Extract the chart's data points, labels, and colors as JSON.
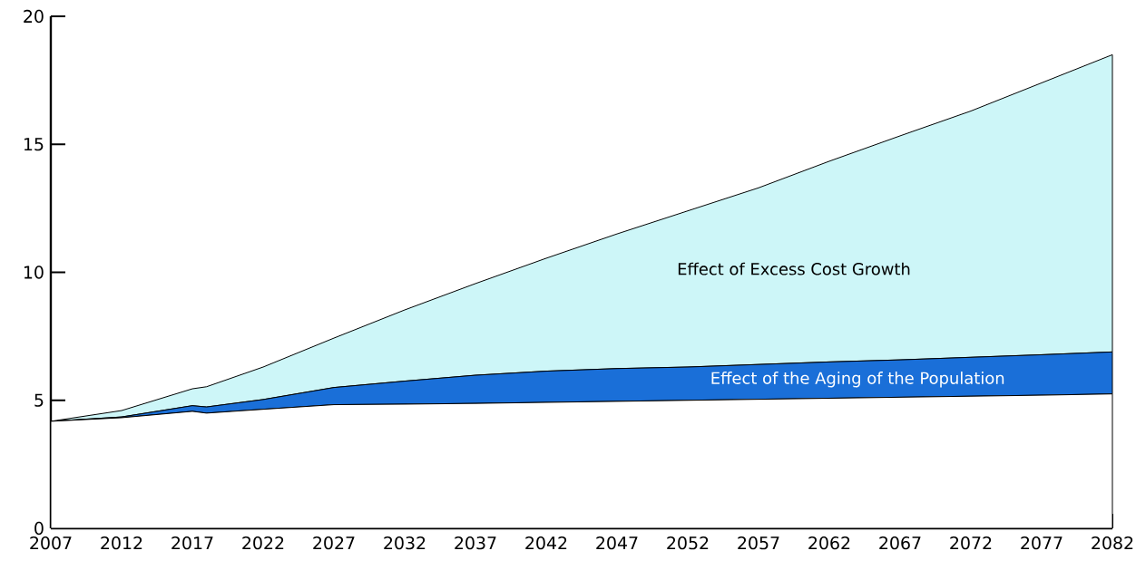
{
  "chart_data": {
    "type": "area",
    "stacked": true,
    "x": [
      2007,
      2012,
      2017,
      2018,
      2022,
      2027,
      2032,
      2037,
      2042,
      2047,
      2052,
      2057,
      2062,
      2067,
      2072,
      2077,
      2082
    ],
    "series": [
      {
        "color": "#ffffff",
        "values": [
          4.18,
          4.32,
          4.57,
          4.5,
          4.65,
          4.83,
          4.85,
          4.88,
          4.92,
          4.96,
          5.0,
          5.04,
          5.08,
          5.12,
          5.16,
          5.2,
          5.25
        ]
      },
      {
        "name": "Effect of the Aging of the Population",
        "color": "#1a6fd8",
        "values": [
          0,
          0.03,
          0.22,
          0.24,
          0.38,
          0.67,
          0.9,
          1.1,
          1.22,
          1.28,
          1.3,
          1.36,
          1.42,
          1.46,
          1.52,
          1.58,
          1.64
        ]
      },
      {
        "name": "Effect of Excess Cost Growth",
        "color": "#cdf6f8",
        "values": [
          0,
          0.25,
          0.66,
          0.79,
          1.27,
          1.93,
          2.78,
          3.58,
          4.41,
          5.26,
          6.1,
          6.9,
          7.84,
          8.75,
          9.62,
          10.62,
          11.61
        ]
      }
    ],
    "xlim": [
      2007,
      2082
    ],
    "ylim": [
      0,
      20
    ],
    "xticks": [
      2007,
      2012,
      2017,
      2022,
      2027,
      2032,
      2037,
      2042,
      2047,
      2052,
      2057,
      2062,
      2067,
      2072,
      2077,
      2082
    ],
    "yticks": [
      0,
      5,
      10,
      15,
      20
    ]
  }
}
